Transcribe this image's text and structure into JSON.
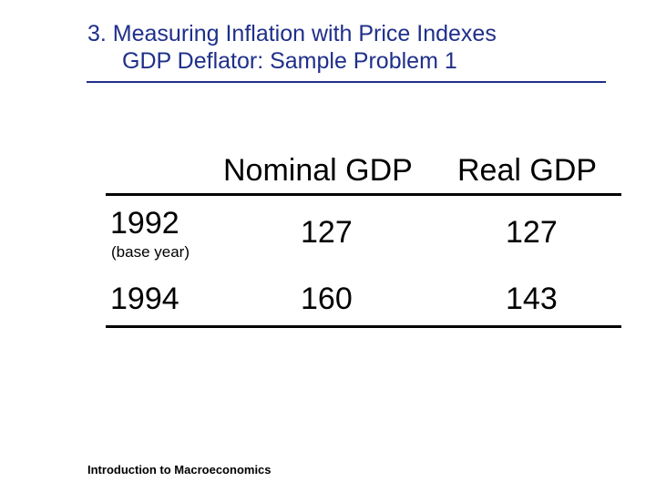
{
  "title": {
    "line1": "3.  Measuring Inflation with Price Indexes",
    "line2": "GDP Deflator: Sample Problem 1"
  },
  "table": {
    "headers": [
      "Nominal GDP",
      "Real GDP"
    ],
    "rows": [
      {
        "year": "1992",
        "note": "(base year)",
        "nominal": "127",
        "real": "127"
      },
      {
        "year": "1994",
        "note": "",
        "nominal": "160",
        "real": "143"
      }
    ]
  },
  "footer": {
    "text": "Introduction to Macroeconomics"
  },
  "colors": {
    "title": "#1f2f8a",
    "text": "#000000"
  }
}
